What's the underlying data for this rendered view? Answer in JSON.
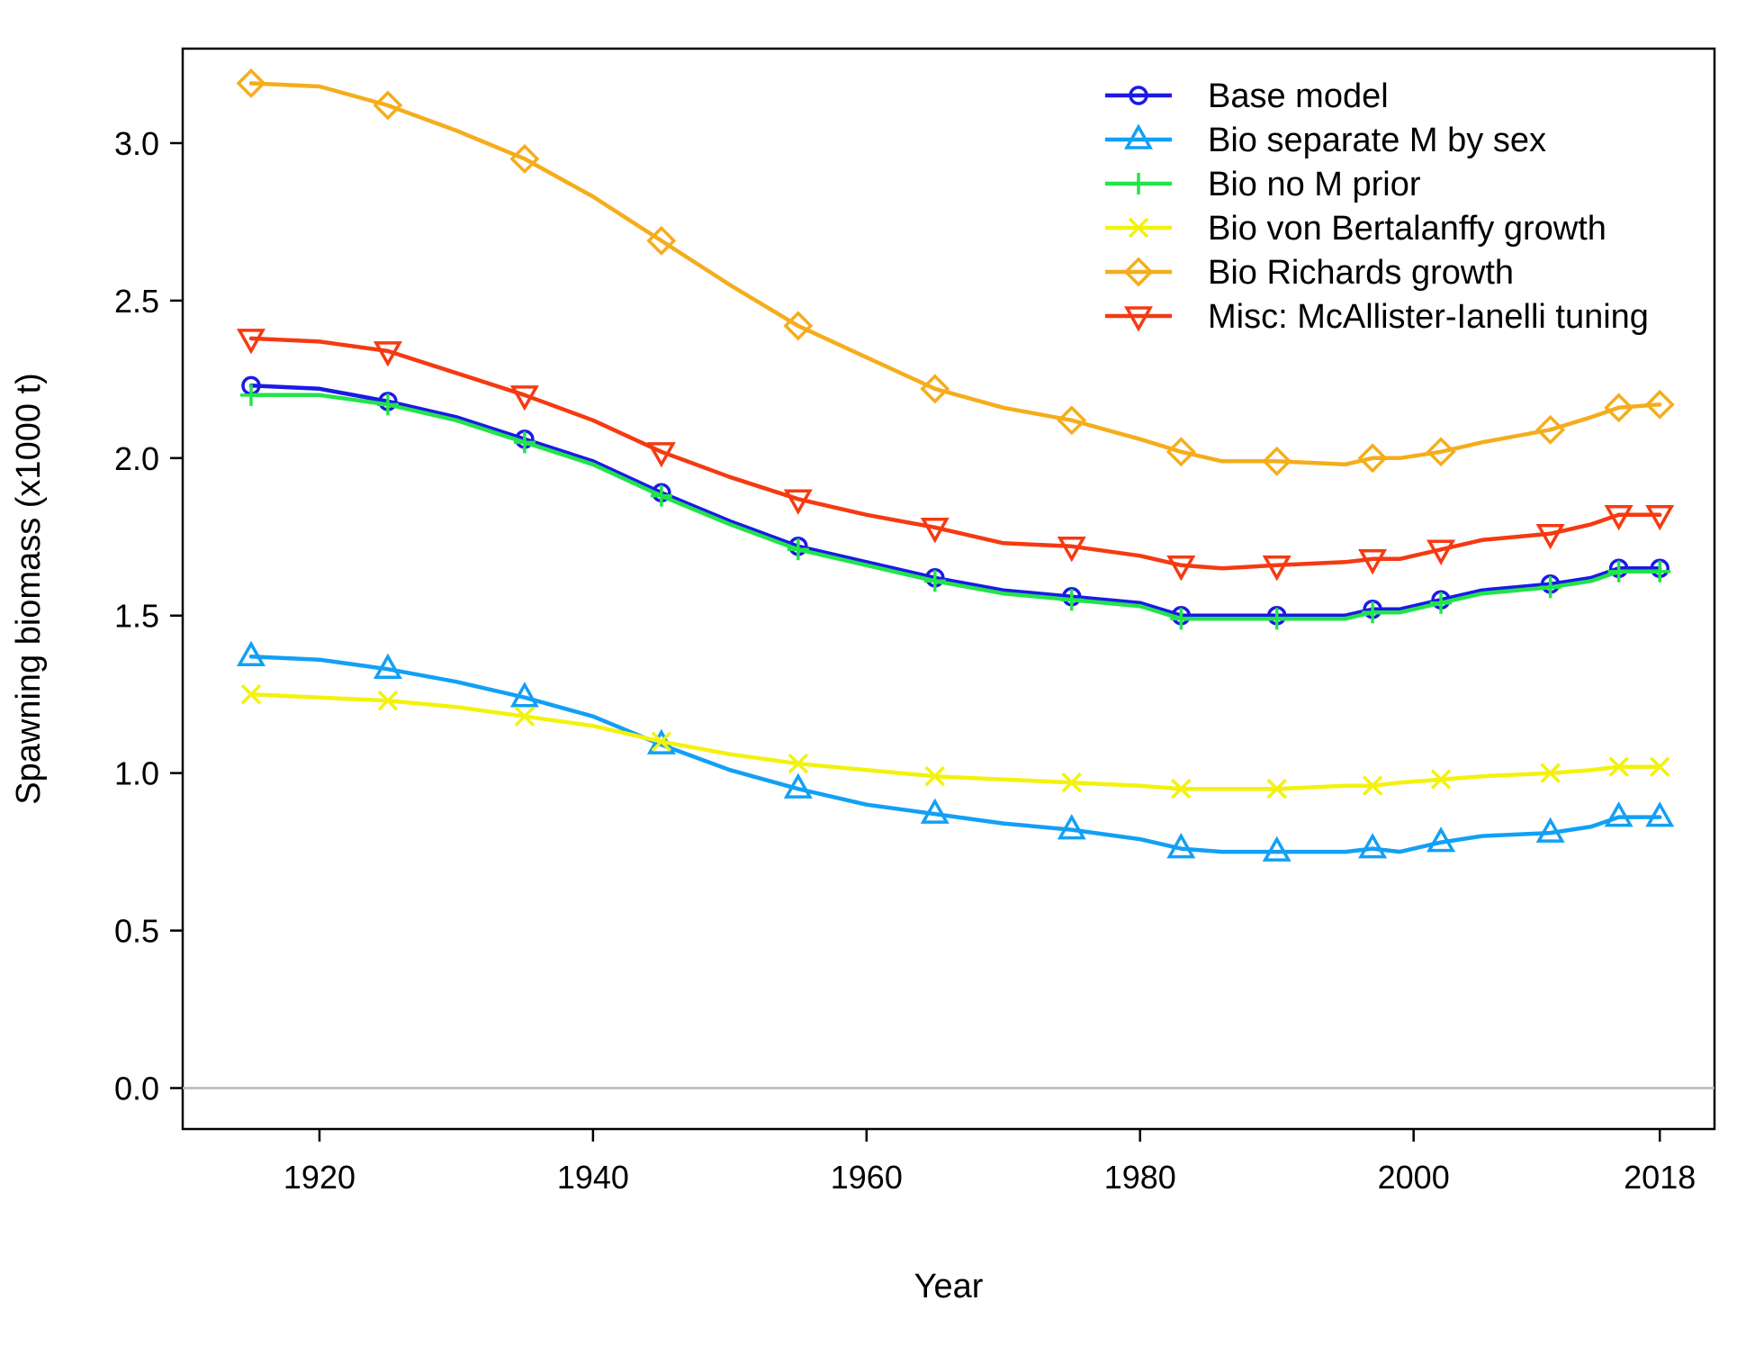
{
  "chart_data": {
    "type": "line",
    "xlabel": "Year",
    "ylabel": "Spawning biomass (x1000 t)",
    "xlim": [
      1910,
      2022
    ],
    "ylim": [
      -0.13,
      3.3
    ],
    "x_ticks": [
      1920,
      1940,
      1960,
      1980,
      2000,
      2018
    ],
    "y_ticks": [
      0.0,
      0.5,
      1.0,
      1.5,
      2.0,
      2.5,
      3.0
    ],
    "x_tick_labels": [
      "1920",
      "1940",
      "1960",
      "1980",
      "2000",
      "2018"
    ],
    "y_tick_labels": [
      "0.0",
      "0.5",
      "1.0",
      "1.5",
      "2.0",
      "2.5",
      "3.0"
    ],
    "grid": false,
    "reference_line": 0,
    "legend_position": "top-right",
    "x": [
      1915,
      1920,
      1925,
      1930,
      1935,
      1940,
      1945,
      1950,
      1955,
      1960,
      1965,
      1970,
      1975,
      1980,
      1983,
      1986,
      1990,
      1995,
      1997,
      1999,
      2002,
      2005,
      2010,
      2013,
      2015,
      2018
    ],
    "series": [
      {
        "name": "Base model",
        "color": "#1a1ae6",
        "marker": "circle",
        "values": [
          2.23,
          2.22,
          2.18,
          2.13,
          2.06,
          1.99,
          1.89,
          1.8,
          1.72,
          1.67,
          1.62,
          1.58,
          1.56,
          1.54,
          1.5,
          1.5,
          1.5,
          1.5,
          1.52,
          1.52,
          1.55,
          1.58,
          1.6,
          1.62,
          1.65,
          1.65
        ]
      },
      {
        "name": "Bio separate M by sex",
        "color": "#12a0f5",
        "marker": "triangle-up",
        "values": [
          1.37,
          1.36,
          1.33,
          1.29,
          1.24,
          1.18,
          1.09,
          1.01,
          0.95,
          0.9,
          0.87,
          0.84,
          0.82,
          0.79,
          0.76,
          0.75,
          0.75,
          0.75,
          0.76,
          0.75,
          0.78,
          0.8,
          0.81,
          0.83,
          0.86,
          0.86
        ]
      },
      {
        "name": "Bio no M prior",
        "color": "#22e44a",
        "marker": "plus",
        "values": [
          2.2,
          2.2,
          2.17,
          2.12,
          2.05,
          1.98,
          1.88,
          1.79,
          1.71,
          1.66,
          1.61,
          1.57,
          1.55,
          1.53,
          1.49,
          1.49,
          1.49,
          1.49,
          1.51,
          1.51,
          1.54,
          1.57,
          1.59,
          1.61,
          1.64,
          1.64
        ]
      },
      {
        "name": "Bio von Bertalanffy growth",
        "color": "#f2f20c",
        "marker": "cross",
        "values": [
          1.25,
          1.24,
          1.23,
          1.21,
          1.18,
          1.15,
          1.1,
          1.06,
          1.03,
          1.01,
          0.99,
          0.98,
          0.97,
          0.96,
          0.95,
          0.95,
          0.95,
          0.96,
          0.96,
          0.97,
          0.98,
          0.99,
          1.0,
          1.01,
          1.02,
          1.02
        ]
      },
      {
        "name": "Bio Richards growth",
        "color": "#f5ad1c",
        "marker": "diamond",
        "values": [
          3.19,
          3.18,
          3.12,
          3.04,
          2.95,
          2.83,
          2.69,
          2.55,
          2.42,
          2.32,
          2.22,
          2.16,
          2.12,
          2.06,
          2.02,
          1.99,
          1.99,
          1.98,
          2.0,
          2.0,
          2.02,
          2.05,
          2.09,
          2.13,
          2.16,
          2.17
        ]
      },
      {
        "name": "Misc: McAllister-Ianelli tuning",
        "color": "#f53a12",
        "marker": "triangle-down",
        "values": [
          2.38,
          2.37,
          2.34,
          2.27,
          2.2,
          2.12,
          2.02,
          1.94,
          1.87,
          1.82,
          1.78,
          1.73,
          1.72,
          1.69,
          1.66,
          1.65,
          1.66,
          1.67,
          1.68,
          1.68,
          1.71,
          1.74,
          1.76,
          1.79,
          1.82,
          1.82
        ]
      }
    ]
  }
}
